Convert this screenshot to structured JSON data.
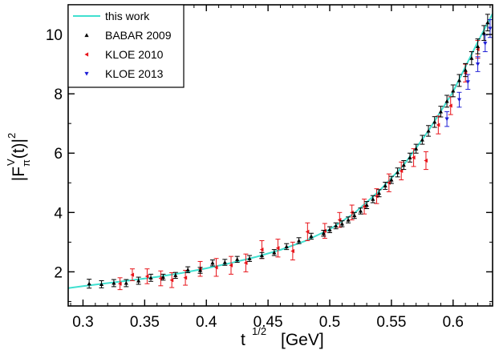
{
  "chart_data": {
    "type": "scatter",
    "xlabel": "t",
    "xlabel_sup": "1/2",
    "xlabel_unit": "[GeV]",
    "ylabel_main": "|F",
    "ylabel_sub": "π",
    "ylabel_sup": "V",
    "ylabel_arg": "(t)|",
    "ylabel_power": "2",
    "xlim": [
      0.288,
      0.632
    ],
    "ylim": [
      0.85,
      11.0
    ],
    "xticks": [
      0.3,
      0.35,
      0.4,
      0.45,
      0.5,
      0.55,
      0.6
    ],
    "xtick_labels": [
      "0.3",
      "0.35",
      "0.4",
      "0.45",
      "0.5",
      "0.55",
      "0.6"
    ],
    "yticks": [
      2,
      4,
      6,
      8,
      10
    ],
    "ytick_labels": [
      "2",
      "4",
      "6",
      "8",
      "10"
    ],
    "legend_position": "top-left",
    "colors": {
      "curve": "#40e0d0",
      "babar": "#000000",
      "kloe2010": "#e8141a",
      "kloe2013": "#1f1fd6"
    },
    "series": [
      {
        "name": "this work",
        "kind": "line",
        "x": [
          0.288,
          0.3,
          0.32,
          0.34,
          0.36,
          0.38,
          0.4,
          0.42,
          0.44,
          0.46,
          0.48,
          0.5,
          0.52,
          0.54,
          0.56,
          0.58,
          0.6,
          0.62,
          0.632
        ],
        "y": [
          1.45,
          1.52,
          1.62,
          1.72,
          1.83,
          1.96,
          2.12,
          2.3,
          2.5,
          2.74,
          3.04,
          3.43,
          3.98,
          4.72,
          5.6,
          6.75,
          8.07,
          9.75,
          10.7
        ]
      },
      {
        "name": "BABAR 2009",
        "kind": "markers",
        "marker": "triangle-up",
        "points": [
          [
            0.305,
            1.6,
            0.15
          ],
          [
            0.315,
            1.58,
            0.12
          ],
          [
            0.325,
            1.62,
            0.12
          ],
          [
            0.335,
            1.62,
            0.12
          ],
          [
            0.345,
            1.7,
            0.12
          ],
          [
            0.355,
            1.8,
            0.12
          ],
          [
            0.365,
            1.82,
            0.1
          ],
          [
            0.375,
            1.88,
            0.1
          ],
          [
            0.385,
            2.07,
            0.1
          ],
          [
            0.395,
            2.05,
            0.1
          ],
          [
            0.405,
            2.3,
            0.1
          ],
          [
            0.415,
            2.32,
            0.1
          ],
          [
            0.425,
            2.42,
            0.1
          ],
          [
            0.435,
            2.45,
            0.1
          ],
          [
            0.445,
            2.55,
            0.1
          ],
          [
            0.455,
            2.65,
            0.1
          ],
          [
            0.465,
            2.85,
            0.1
          ],
          [
            0.475,
            3.05,
            0.1
          ],
          [
            0.485,
            3.2,
            0.1
          ],
          [
            0.495,
            3.3,
            0.1
          ],
          [
            0.5,
            3.42,
            0.1
          ],
          [
            0.505,
            3.55,
            0.1
          ],
          [
            0.51,
            3.62,
            0.1
          ],
          [
            0.515,
            3.75,
            0.1
          ],
          [
            0.52,
            3.9,
            0.1
          ],
          [
            0.525,
            4.05,
            0.1
          ],
          [
            0.53,
            4.25,
            0.12
          ],
          [
            0.535,
            4.45,
            0.12
          ],
          [
            0.54,
            4.65,
            0.12
          ],
          [
            0.545,
            4.9,
            0.12
          ],
          [
            0.55,
            5.1,
            0.12
          ],
          [
            0.555,
            5.35,
            0.15
          ],
          [
            0.56,
            5.6,
            0.15
          ],
          [
            0.565,
            5.85,
            0.15
          ],
          [
            0.57,
            6.15,
            0.15
          ],
          [
            0.575,
            6.45,
            0.15
          ],
          [
            0.58,
            6.75,
            0.18
          ],
          [
            0.585,
            7.05,
            0.18
          ],
          [
            0.59,
            7.4,
            0.18
          ],
          [
            0.595,
            7.75,
            0.2
          ],
          [
            0.6,
            8.1,
            0.2
          ],
          [
            0.605,
            8.45,
            0.2
          ],
          [
            0.61,
            8.8,
            0.22
          ],
          [
            0.615,
            9.2,
            0.22
          ],
          [
            0.62,
            9.6,
            0.25
          ],
          [
            0.625,
            10.05,
            0.25
          ],
          [
            0.628,
            10.4,
            0.28
          ]
        ]
      },
      {
        "name": "KLOE 2010",
        "kind": "markers",
        "marker": "triangle-left",
        "points": [
          [
            0.33,
            1.6,
            0.2
          ],
          [
            0.34,
            1.9,
            0.2
          ],
          [
            0.352,
            1.85,
            0.25
          ],
          [
            0.363,
            1.78,
            0.25
          ],
          [
            0.372,
            1.72,
            0.25
          ],
          [
            0.383,
            1.8,
            0.25
          ],
          [
            0.395,
            2.1,
            0.25
          ],
          [
            0.408,
            2.15,
            0.3
          ],
          [
            0.42,
            2.22,
            0.3
          ],
          [
            0.432,
            2.3,
            0.3
          ],
          [
            0.445,
            2.75,
            0.3
          ],
          [
            0.458,
            2.8,
            0.3
          ],
          [
            0.47,
            2.7,
            0.3
          ],
          [
            0.482,
            3.35,
            0.3
          ],
          [
            0.496,
            3.38,
            0.25
          ],
          [
            0.508,
            3.75,
            0.25
          ],
          [
            0.518,
            4.0,
            0.25
          ],
          [
            0.528,
            4.2,
            0.25
          ],
          [
            0.538,
            4.55,
            0.25
          ],
          [
            0.548,
            5.0,
            0.3
          ],
          [
            0.558,
            5.4,
            0.3
          ],
          [
            0.568,
            5.85,
            0.3
          ],
          [
            0.578,
            5.75,
            0.3
          ],
          [
            0.588,
            6.95,
            0.3
          ],
          [
            0.598,
            7.6,
            0.3
          ],
          [
            0.61,
            8.7,
            0.3
          ],
          [
            0.62,
            9.5,
            0.3
          ]
        ]
      },
      {
        "name": "KLOE 2013",
        "kind": "markers",
        "marker": "triangle-down",
        "points": [
          [
            0.595,
            7.15,
            0.25
          ],
          [
            0.605,
            7.8,
            0.25
          ],
          [
            0.612,
            8.4,
            0.25
          ],
          [
            0.62,
            9.0,
            0.25
          ],
          [
            0.626,
            9.7,
            0.28
          ],
          [
            0.63,
            10.2,
            0.3
          ]
        ]
      }
    ]
  }
}
